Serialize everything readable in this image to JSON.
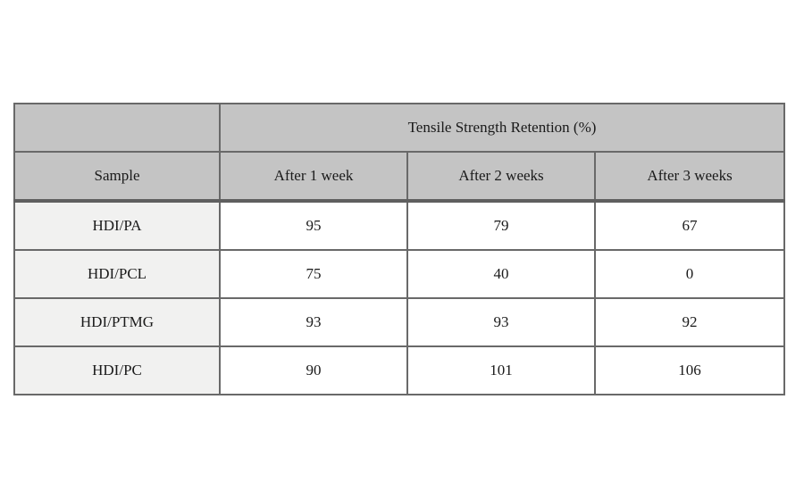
{
  "chart_data": {
    "type": "table",
    "title": "Tensile Strength Retention (%)",
    "row_header_label": "Sample",
    "columns": [
      "After 1 week",
      "After 2 weeks",
      "After 3 weeks"
    ],
    "rows": [
      {
        "sample": "HDI/PA",
        "values": [
          "95",
          "79",
          "67"
        ]
      },
      {
        "sample": "HDI/PCL",
        "values": [
          "75",
          "40",
          "0"
        ]
      },
      {
        "sample": "HDI/PTMG",
        "values": [
          "93",
          "93",
          "92"
        ]
      },
      {
        "sample": "HDI/PC",
        "values": [
          "90",
          "101",
          "106"
        ]
      }
    ]
  },
  "colors": {
    "header_background": "#c4c4c4",
    "sample_column_background": "#f1f1f0",
    "border": "#696969",
    "text": "#1a1a1a",
    "page_background": "#ffffff"
  }
}
